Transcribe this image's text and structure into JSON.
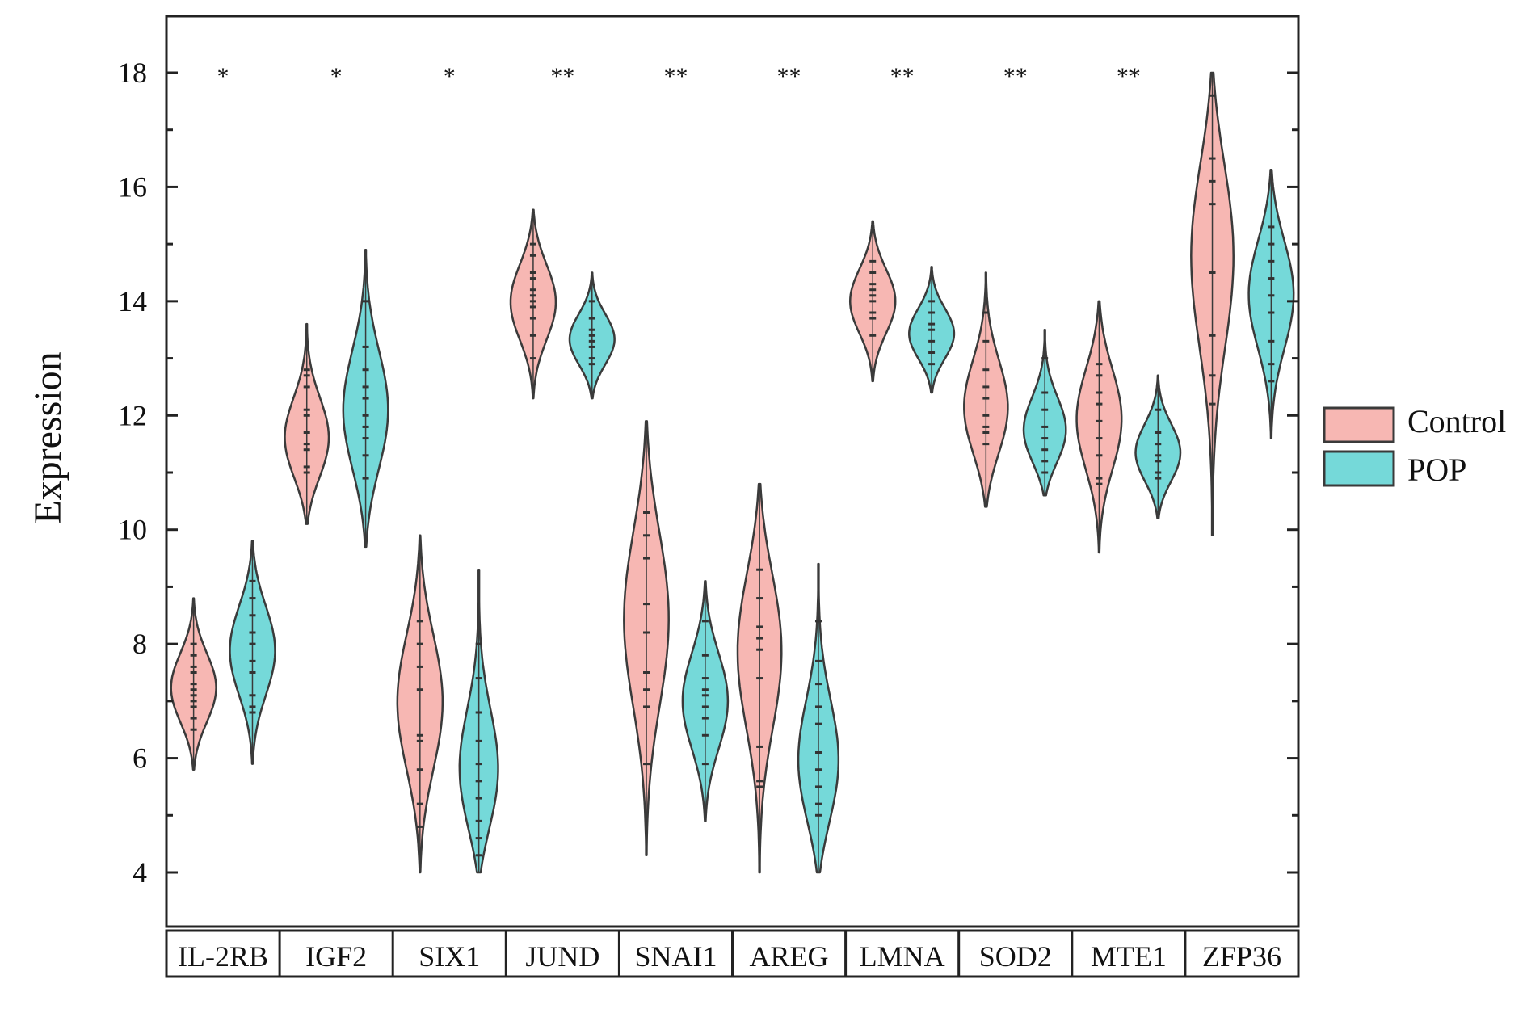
{
  "chart_data": {
    "type": "violin",
    "ylabel": "Expression",
    "ylim": [
      3,
      19.5
    ],
    "yticks": [
      4,
      6,
      8,
      10,
      12,
      14,
      16,
      18
    ],
    "categories": [
      "IL-2RB",
      "IGF2",
      "SIX1",
      "JUND",
      "SNAI1",
      "AREG",
      "LMNA",
      "SOD2",
      "MTE1",
      "ZFP36"
    ],
    "significance": [
      "*",
      "*",
      "*",
      "**",
      "**",
      "**",
      "**",
      "**",
      "**",
      ""
    ],
    "legend": {
      "position": "right",
      "entries": [
        "Control",
        "POP"
      ]
    },
    "colors": {
      "Control": "#f7b7b3",
      "POP": "#75d9d9",
      "outline": "#3a3a3a"
    },
    "series": [
      {
        "name": "Control",
        "violins": [
          {
            "min": 5.8,
            "max": 8.8,
            "mode": 7.2,
            "points": [
              6.5,
              6.7,
              6.9,
              7.0,
              7.1,
              7.2,
              7.3,
              7.5,
              7.6,
              7.8,
              8.0
            ]
          },
          {
            "min": 10.1,
            "max": 13.6,
            "mode": 11.5,
            "points": [
              11.0,
              11.1,
              11.4,
              11.5,
              11.7,
              12.0,
              12.1,
              12.5,
              12.7,
              12.8
            ]
          },
          {
            "min": 4.0,
            "max": 9.9,
            "mode": 7.0,
            "points": [
              4.8,
              5.2,
              5.8,
              6.3,
              6.4,
              7.2,
              7.6,
              8.0,
              8.4
            ]
          },
          {
            "min": 12.3,
            "max": 15.6,
            "mode": 14.0,
            "points": [
              13.0,
              13.4,
              13.7,
              13.9,
              14.0,
              14.1,
              14.2,
              14.4,
              14.5,
              14.8,
              15.0
            ]
          },
          {
            "min": 4.3,
            "max": 11.9,
            "mode": 8.6,
            "points": [
              5.9,
              6.9,
              7.2,
              7.5,
              8.2,
              8.7,
              9.5,
              9.9,
              10.3
            ]
          },
          {
            "min": 4.0,
            "max": 10.8,
            "mode": 8.1,
            "points": [
              5.5,
              5.6,
              6.2,
              7.4,
              7.9,
              8.1,
              8.3,
              8.8,
              9.3
            ]
          },
          {
            "min": 12.6,
            "max": 15.4,
            "mode": 14.0,
            "points": [
              13.4,
              13.7,
              13.8,
              14.0,
              14.1,
              14.2,
              14.3,
              14.5,
              14.7
            ]
          },
          {
            "min": 10.4,
            "max": 14.5,
            "mode": 12.0,
            "points": [
              11.5,
              11.7,
              11.8,
              12.0,
              12.3,
              12.5,
              12.8,
              13.3,
              13.8
            ]
          },
          {
            "min": 9.6,
            "max": 14.0,
            "mode": 12.0,
            "points": [
              10.8,
              10.9,
              11.3,
              11.6,
              11.9,
              12.2,
              12.4,
              12.7,
              12.9
            ]
          },
          {
            "min": 9.9,
            "max": 18.0,
            "mode": 15.2,
            "points": [
              12.2,
              12.7,
              13.4,
              14.5,
              15.7,
              16.1,
              16.5,
              17.6
            ]
          }
        ]
      },
      {
        "name": "POP",
        "violins": [
          {
            "min": 5.9,
            "max": 9.8,
            "mode": 7.9,
            "points": [
              6.8,
              6.9,
              7.1,
              7.5,
              7.7,
              8.0,
              8.2,
              8.5,
              8.8,
              9.1
            ]
          },
          {
            "min": 9.7,
            "max": 14.9,
            "mode": 12.0,
            "points": [
              10.9,
              11.3,
              11.6,
              11.8,
              12.0,
              12.3,
              12.5,
              12.8,
              13.2,
              14.0
            ]
          },
          {
            "min": 4.0,
            "max": 9.3,
            "mode": 5.4,
            "points": [
              4.3,
              4.6,
              4.9,
              5.3,
              5.6,
              5.9,
              6.3,
              6.8,
              7.4,
              8.0
            ]
          },
          {
            "min": 12.3,
            "max": 14.5,
            "mode": 13.3,
            "points": [
              12.9,
              13.0,
              13.2,
              13.3,
              13.4,
              13.5,
              13.7,
              14.0
            ]
          },
          {
            "min": 4.9,
            "max": 9.1,
            "mode": 7.0,
            "points": [
              5.9,
              6.4,
              6.7,
              6.9,
              7.1,
              7.2,
              7.4,
              7.8,
              8.4
            ]
          },
          {
            "min": 4.0,
            "max": 9.4,
            "mode": 5.6,
            "points": [
              5.0,
              5.2,
              5.5,
              5.8,
              6.1,
              6.6,
              6.9,
              7.3,
              7.7,
              8.4
            ]
          },
          {
            "min": 12.4,
            "max": 14.6,
            "mode": 13.4,
            "points": [
              12.9,
              13.1,
              13.3,
              13.5,
              13.6,
              13.8,
              14.0
            ]
          },
          {
            "min": 10.6,
            "max": 13.5,
            "mode": 11.6,
            "points": [
              11.0,
              11.2,
              11.4,
              11.6,
              11.8,
              12.1,
              12.4,
              13.0
            ]
          },
          {
            "min": 10.2,
            "max": 12.7,
            "mode": 11.3,
            "points": [
              10.9,
              11.0,
              11.2,
              11.3,
              11.5,
              11.7,
              12.1
            ]
          },
          {
            "min": 11.6,
            "max": 16.3,
            "mode": 14.2,
            "points": [
              12.6,
              12.9,
              13.3,
              13.8,
              14.1,
              14.4,
              14.7,
              15.0,
              15.3
            ]
          }
        ]
      }
    ]
  }
}
